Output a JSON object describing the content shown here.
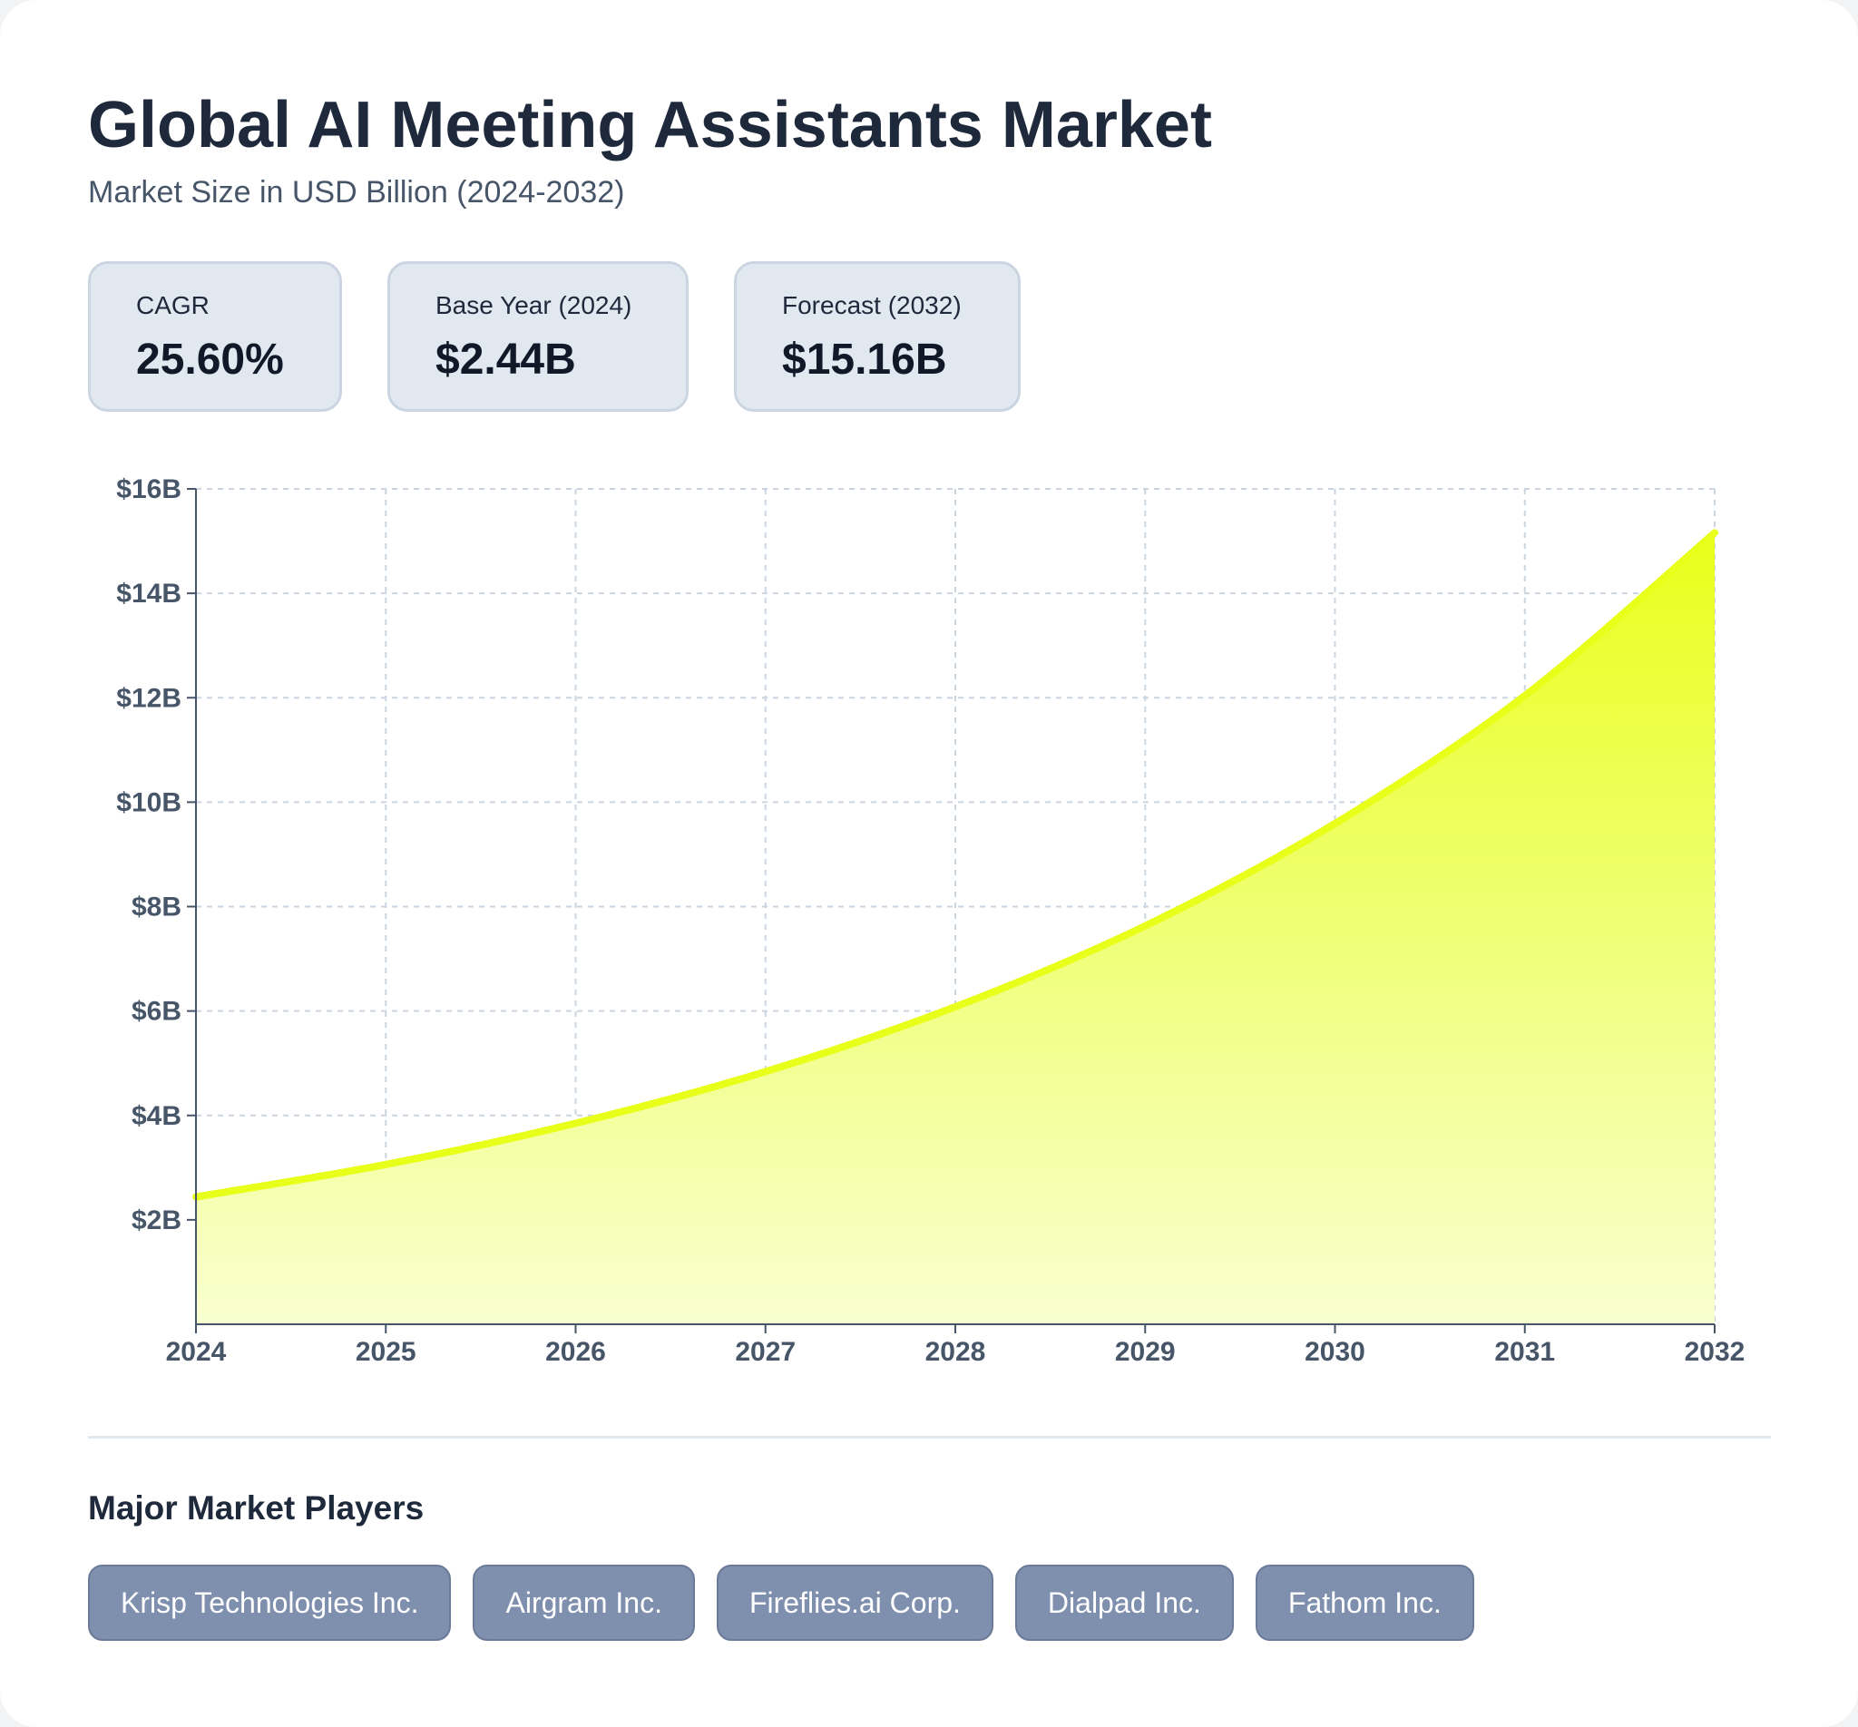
{
  "title": "Global AI Meeting Assistants Market",
  "subtitle": "Market Size in USD Billion (2024-2032)",
  "stats": [
    {
      "label": "CAGR",
      "value": "25.60%"
    },
    {
      "label": "Base Year (2024)",
      "value": "$2.44B"
    },
    {
      "label": "Forecast (2032)",
      "value": "$15.16B"
    }
  ],
  "colors": {
    "line": "#e8ff1a",
    "fill_top": "#e8ff1a",
    "fill_bottom": "#f8ffd0",
    "grid": "#cbd5e1",
    "axis": "#475569",
    "tick_text": "#475569",
    "chip_bg": "#7f8fae"
  },
  "chart_data": {
    "type": "area",
    "x": [
      2024,
      2025,
      2026,
      2027,
      2028,
      2029,
      2030,
      2031,
      2032
    ],
    "series": [
      {
        "values": [
          2.44,
          3.06,
          3.85,
          4.84,
          6.08,
          7.63,
          9.59,
          12.04,
          15.16
        ]
      }
    ],
    "xlim": [
      2024,
      2032
    ],
    "ylim": [
      0,
      16
    ],
    "y_ticks": [
      2,
      4,
      6,
      8,
      10,
      12,
      14,
      16
    ],
    "y_tick_labels": [
      "$2B",
      "$4B",
      "$6B",
      "$8B",
      "$10B",
      "$12B",
      "$14B",
      "$16B"
    ],
    "x_tick_labels": [
      "2024",
      "2025",
      "2026",
      "2027",
      "2028",
      "2029",
      "2030",
      "2031",
      "2032"
    ],
    "grid": true,
    "xlabel": "",
    "ylabel": ""
  },
  "players": {
    "title": "Major Market Players",
    "items": [
      "Krisp Technologies Inc.",
      "Airgram Inc.",
      "Fireflies.ai Corp.",
      "Dialpad Inc.",
      "Fathom Inc."
    ]
  }
}
